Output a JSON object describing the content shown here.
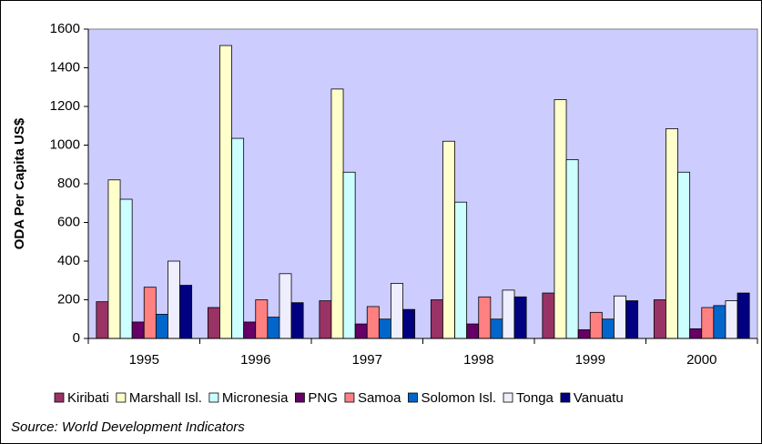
{
  "chart_data": {
    "type": "bar",
    "y_label": "ODA Per Capita US$",
    "source": "Source: World Development Indicators",
    "categories": [
      "1995",
      "1996",
      "1997",
      "1998",
      "1999",
      "2000"
    ],
    "series": [
      {
        "name": "Kiribati",
        "color": "#993366",
        "values": [
          190,
          160,
          195,
          200,
          235,
          200
        ]
      },
      {
        "name": "Marshall Isl.",
        "color": "#ffffcc",
        "values": [
          820,
          1515,
          1290,
          1020,
          1235,
          1085
        ]
      },
      {
        "name": "Micronesia",
        "color": "#ccffff",
        "values": [
          720,
          1035,
          860,
          705,
          925,
          860
        ]
      },
      {
        "name": "PNG",
        "color": "#660066",
        "values": [
          85,
          85,
          75,
          75,
          45,
          50
        ]
      },
      {
        "name": "Samoa",
        "color": "#ff8080",
        "values": [
          265,
          200,
          165,
          215,
          135,
          160
        ]
      },
      {
        "name": "Solomon Isl.",
        "color": "#0066cc",
        "values": [
          125,
          110,
          100,
          100,
          100,
          170
        ]
      },
      {
        "name": "Tonga",
        "color": "#eeeeff",
        "values": [
          400,
          335,
          285,
          250,
          220,
          195
        ]
      },
      {
        "name": "Vanuatu",
        "color": "#000080",
        "values": [
          275,
          185,
          150,
          215,
          195,
          235
        ]
      }
    ],
    "ylim": [
      0,
      1600
    ],
    "yticks": [
      0,
      200,
      400,
      600,
      800,
      1000,
      1200,
      1400,
      1600
    ],
    "plot_background": "#ccccff"
  }
}
